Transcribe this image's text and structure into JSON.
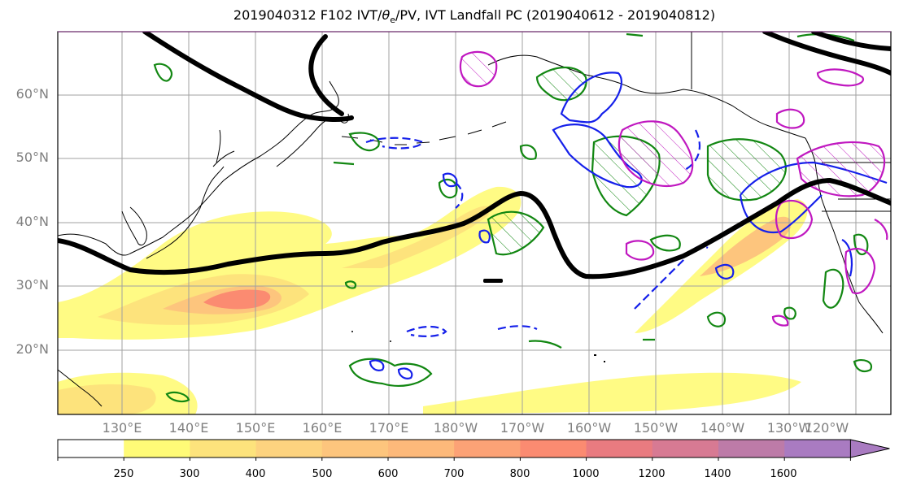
{
  "title": {
    "prefix": "2019040312 F102 IVT/",
    "theta": "θ",
    "sub": "e",
    "suffix": "/PV, IVT Landfall PC (2019040612 - 2019040812)"
  },
  "lat_labels": [
    "60°N",
    "50°N",
    "40°N",
    "30°N",
    "20°N"
  ],
  "lon_labels": [
    "130°E",
    "140°E",
    "150°E",
    "160°E",
    "170°E",
    "180°W",
    "170°W",
    "160°W",
    "150°W",
    "140°W",
    "130°W",
    "120°W"
  ],
  "colorbar": {
    "levels": [
      "250",
      "300",
      "400",
      "500",
      "600",
      "700",
      "800",
      "1000",
      "1200",
      "1400",
      "1600"
    ],
    "colors": [
      "#ffffff",
      "#fffb77",
      "#fde37c",
      "#fdd37f",
      "#fdc57d",
      "#fdb97a",
      "#fca276",
      "#fb8b71",
      "#e97b80",
      "#d77a93",
      "#bd7ba8",
      "#a97bc1"
    ],
    "extend": "max"
  },
  "contour_colors": {
    "pv_line": "#000000",
    "green": "#128712",
    "blue": "#1520ea",
    "magenta": "#c018c0"
  }
}
